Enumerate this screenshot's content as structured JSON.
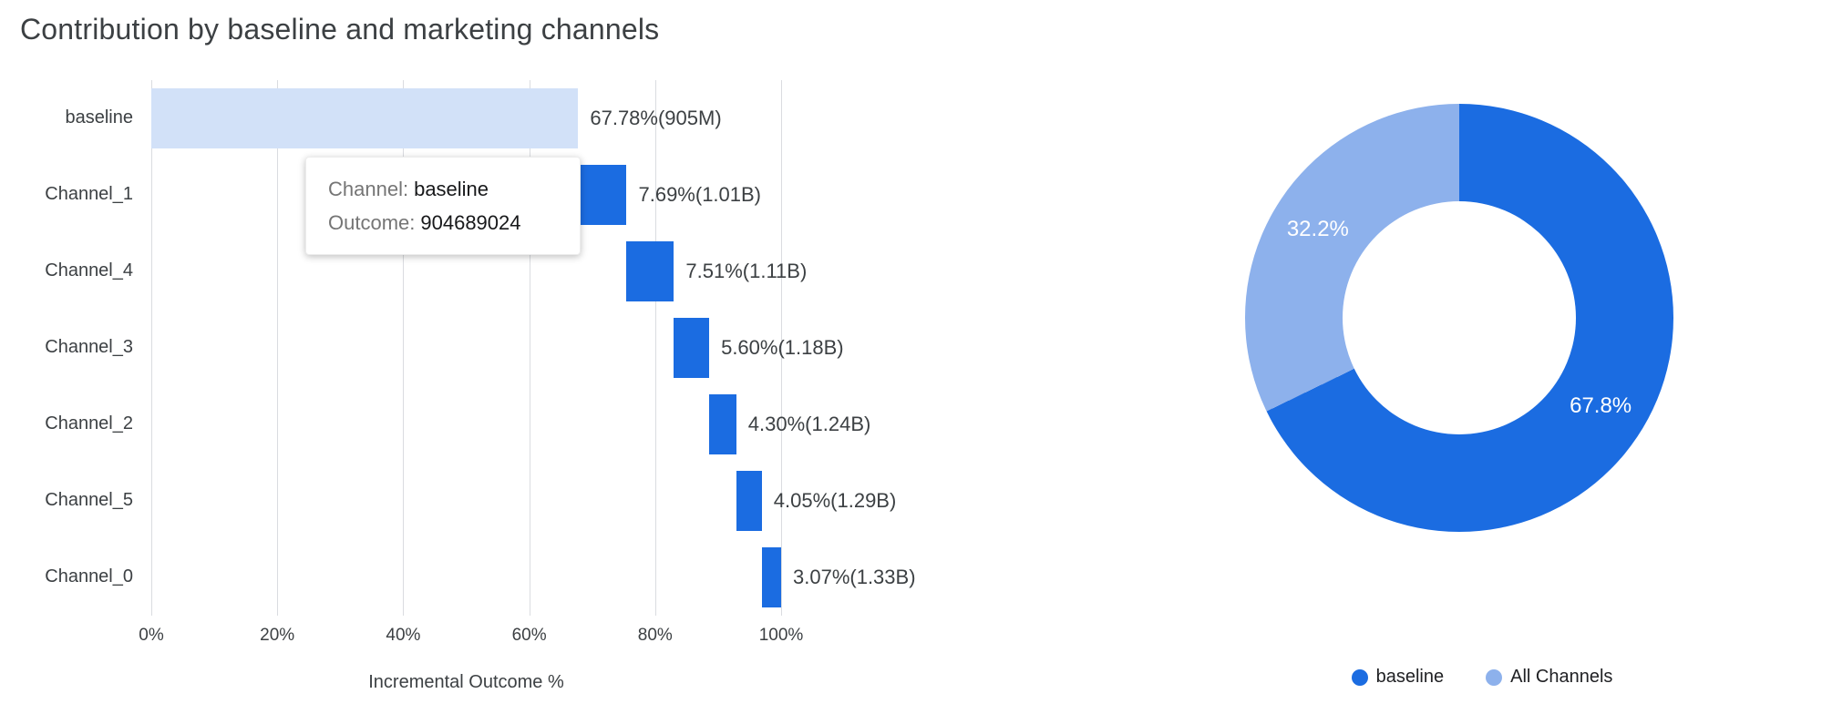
{
  "tooltip": {
    "channel_label": "Channel:",
    "channel_value": "baseline",
    "outcome_label": "Outcome:",
    "outcome_value": "904689024"
  },
  "colors": {
    "channel_blue": "#1b6ce1",
    "baseline_light_blue": "#d2e1f8",
    "donut_light_blue": "#8db1ec",
    "gridline_gray": "#dadce0",
    "text_dark": "#3c4043",
    "text_gray": "#757575"
  },
  "chart_data": [
    {
      "type": "bar",
      "subtype": "horizontal_waterfall",
      "title": "Contribution by baseline and marketing channels",
      "xlabel": "Incremental Outcome %",
      "ylabel": "",
      "xlim": [
        0,
        100
      ],
      "grid": true,
      "legend": "none",
      "x_ticks": [
        {
          "value": 0,
          "label": "0%"
        },
        {
          "value": 20,
          "label": "20%"
        },
        {
          "value": 40,
          "label": "40%"
        },
        {
          "value": 60,
          "label": "60%"
        },
        {
          "value": 80,
          "label": "80%"
        },
        {
          "value": 100,
          "label": "100%"
        }
      ],
      "bars": [
        {
          "category": "baseline",
          "start": 0,
          "value": 67.78,
          "label": "67.78%(905M)",
          "color": "#d2e1f8"
        },
        {
          "category": "Channel_1",
          "start": 67.78,
          "value": 7.69,
          "label": "7.69%(1.01B)",
          "color": "#1b6ce1"
        },
        {
          "category": "Channel_4",
          "start": 75.47,
          "value": 7.51,
          "label": "7.51%(1.11B)",
          "color": "#1b6ce1"
        },
        {
          "category": "Channel_3",
          "start": 82.98,
          "value": 5.6,
          "label": "5.60%(1.18B)",
          "color": "#1b6ce1"
        },
        {
          "category": "Channel_2",
          "start": 88.58,
          "value": 4.3,
          "label": "4.30%(1.24B)",
          "color": "#1b6ce1"
        },
        {
          "category": "Channel_5",
          "start": 92.88,
          "value": 4.05,
          "label": "4.05%(1.29B)",
          "color": "#1b6ce1"
        },
        {
          "category": "Channel_0",
          "start": 96.93,
          "value": 3.07,
          "label": "3.07%(1.33B)",
          "color": "#1b6ce1"
        }
      ]
    },
    {
      "type": "pie",
      "subtype": "donut",
      "legend_position": "bottom",
      "slices": [
        {
          "label": "baseline",
          "value": 67.8,
          "display": "67.8%",
          "color": "#1b6ce1"
        },
        {
          "label": "All Channels",
          "value": 32.2,
          "display": "32.2%",
          "color": "#8db1ec"
        }
      ]
    }
  ]
}
